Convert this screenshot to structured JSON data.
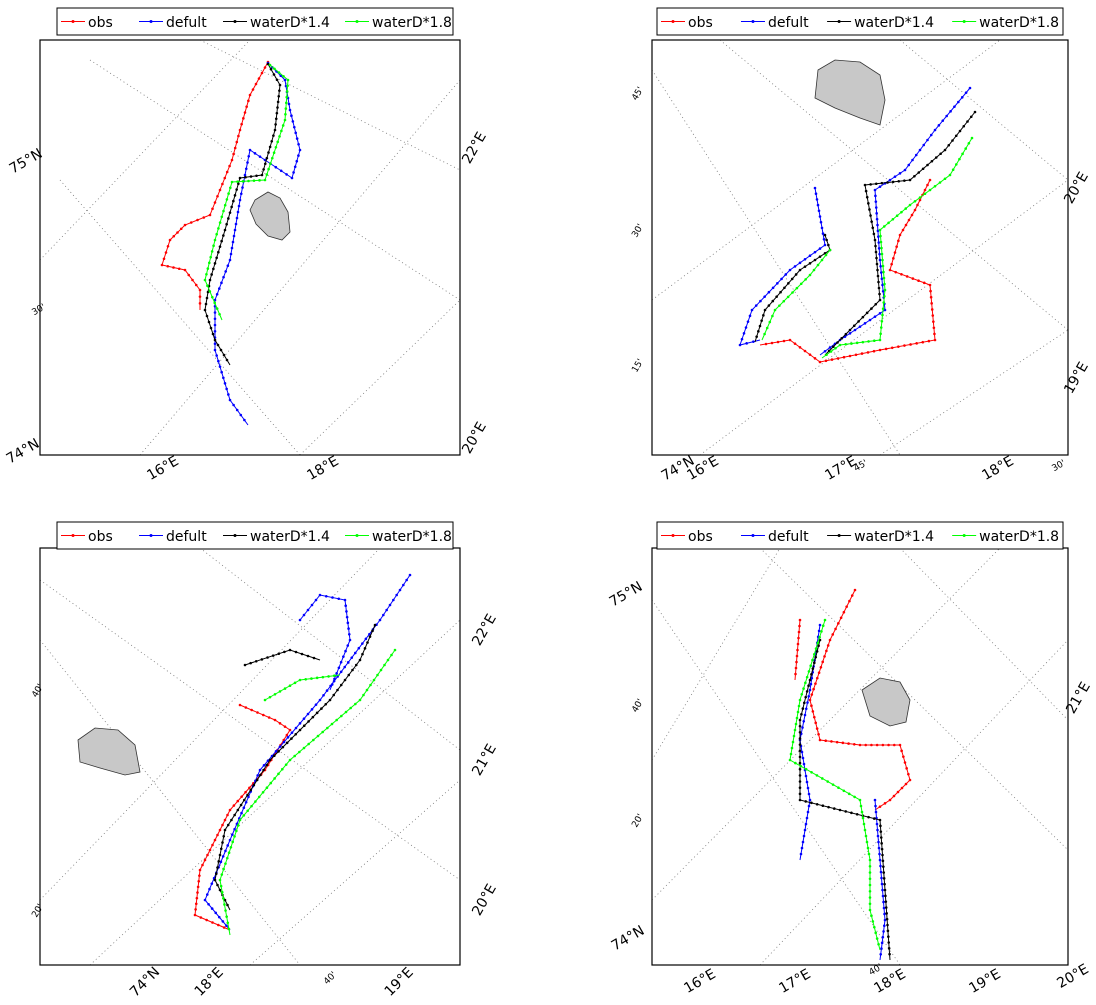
{
  "legend": [
    {
      "name": "obs",
      "color": "#ff0000"
    },
    {
      "name": "defult",
      "color": "#0000ff"
    },
    {
      "name": "waterD*1.4",
      "color": "#000000"
    },
    {
      "name": "waterD*1.8",
      "color": "#00ff00"
    }
  ],
  "panels": [
    {
      "labels": [
        "75°N",
        "74°N",
        "30'",
        "16°E",
        "18°E",
        "22°E",
        "20°E"
      ]
    },
    {
      "labels": [
        "45'",
        "30'",
        "15'",
        "74°N",
        "16°E",
        "17°E",
        "45'",
        "18°E",
        "30'",
        "20°E",
        "19°E"
      ]
    },
    {
      "labels": [
        "40'",
        "20'",
        "74°N",
        "18°E",
        "40'",
        "19°E",
        "22°E",
        "21°E",
        "20°E"
      ]
    },
    {
      "labels": [
        "75°N",
        "40'",
        "20'",
        "74°N",
        "16°E",
        "17°E",
        "18°E",
        "19°E",
        "20°E",
        "40'",
        "21°E"
      ]
    }
  ]
}
